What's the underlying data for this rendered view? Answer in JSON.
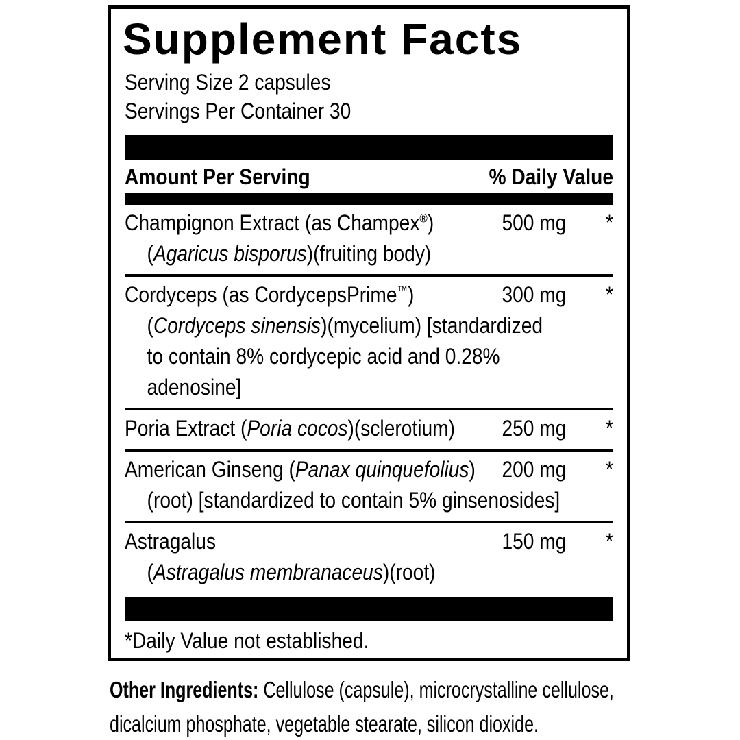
{
  "label": {
    "title": "Supplement Facts",
    "serving_size": "Serving Size 2 capsules",
    "servings_per_container": "Servings Per Container 30",
    "columns": {
      "amount_header": "Amount Per Serving",
      "daily_value_header": "% Daily Value"
    },
    "rows": [
      {
        "name": [
          {
            "t": "Champignon Extract (as Champex"
          },
          {
            "t": "®",
            "s": "sup"
          },
          {
            "t": ")"
          }
        ],
        "amount": "500 mg",
        "daily_value": "*",
        "details": [
          [
            {
              "t": "("
            },
            {
              "t": "Agaricus bisporus",
              "s": "i"
            },
            {
              "t": ")(fruiting body)"
            }
          ]
        ]
      },
      {
        "name": [
          {
            "t": "Cordyceps (as CordycepsPrime"
          },
          {
            "t": "™",
            "s": "sup"
          },
          {
            "t": ")"
          }
        ],
        "amount": "300 mg",
        "daily_value": "*",
        "details": [
          [
            {
              "t": "("
            },
            {
              "t": "Cordyceps sinensis",
              "s": "i"
            },
            {
              "t": ")(mycelium) [standardized"
            }
          ],
          [
            {
              "t": "to contain 8% cordycepic acid and 0.28%"
            }
          ],
          [
            {
              "t": "adenosine]"
            }
          ]
        ]
      },
      {
        "name": [
          {
            "t": "Poria Extract ("
          },
          {
            "t": "Poria cocos",
            "s": "i"
          },
          {
            "t": ")(sclerotium)"
          }
        ],
        "amount": "250 mg",
        "daily_value": "*",
        "details": []
      },
      {
        "name": [
          {
            "t": "American Ginseng ("
          },
          {
            "t": "Panax quinquefolius",
            "s": "i"
          },
          {
            "t": ")"
          }
        ],
        "amount": "200 mg",
        "daily_value": "*",
        "details": [
          [
            {
              "t": "(root) [standardized to contain 5% ginsenosides]"
            }
          ]
        ]
      },
      {
        "name": [
          {
            "t": "Astragalus"
          }
        ],
        "amount": "150 mg",
        "daily_value": "*",
        "details": [
          [
            {
              "t": "("
            },
            {
              "t": "Astragalus membranaceus",
              "s": "i"
            },
            {
              "t": ")(root)"
            }
          ]
        ]
      }
    ],
    "footnote": "*Daily Value not established.",
    "other_ingredients_lines": [
      [
        {
          "t": "Other Ingredients:",
          "b": true
        },
        {
          "t": " Cellulose (capsule), microcrystalline cellulose,"
        }
      ],
      [
        {
          "t": "dicalcium phosphate, vegetable stearate, silicon dioxide."
        }
      ]
    ],
    "colors": {
      "ink": "#000000",
      "background": "#ffffff"
    }
  }
}
